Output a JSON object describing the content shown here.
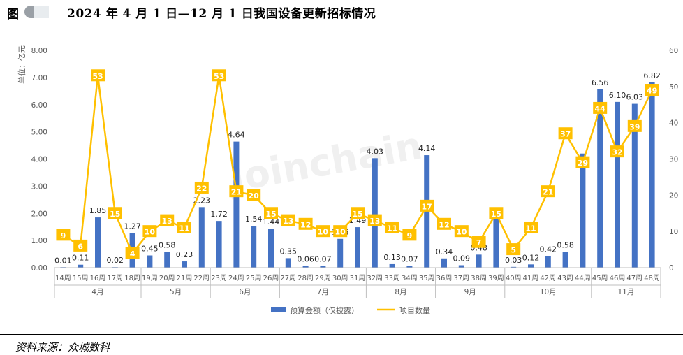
{
  "header": {
    "figure_label": "图",
    "title": "2024 年 4 月 1 日—12 月 1 日我国设备更新招标情况"
  },
  "footer": {
    "source": "资料来源：众城数科"
  },
  "colors": {
    "bar": "#4472C4",
    "line": "#FFC000",
    "label_box": "#FFC000",
    "grid": "#d9d9d9"
  },
  "chart_data": {
    "type": "bar",
    "title": "",
    "y_unit_label": "单位：亿元",
    "watermark": "Joinchain",
    "categories": [
      "14周",
      "15周",
      "16周",
      "17周",
      "18周",
      "19周",
      "20周",
      "21周",
      "22周",
      "23周",
      "24周",
      "25周",
      "26周",
      "27周",
      "28周",
      "29周",
      "30周",
      "31周",
      "32周",
      "33周",
      "34周",
      "35周",
      "36周",
      "37周",
      "38周",
      "39周",
      "40周",
      "41周",
      "42周",
      "43周",
      "44周",
      "45周",
      "46周",
      "47周",
      "48周"
    ],
    "months": [
      {
        "label": "4月",
        "span": 5
      },
      {
        "label": "5月",
        "span": 4
      },
      {
        "label": "6月",
        "span": 4
      },
      {
        "label": "7月",
        "span": 5
      },
      {
        "label": "8月",
        "span": 4
      },
      {
        "label": "9月",
        "span": 4
      },
      {
        "label": "10月",
        "span": 5
      },
      {
        "label": "11月",
        "span": 4
      }
    ],
    "series": [
      {
        "name": "预算金额（仅披露）",
        "type": "bar",
        "axis": "left",
        "values": [
          0.01,
          0.11,
          1.85,
          0.02,
          1.27,
          0.45,
          0.58,
          0.23,
          2.23,
          1.72,
          4.64,
          1.54,
          1.44,
          0.35,
          0.06,
          0.07,
          1.06,
          1.49,
          4.03,
          0.13,
          0.07,
          4.14,
          0.34,
          0.09,
          0.48,
          2.1,
          0.03,
          0.12,
          0.42,
          0.58,
          4.2,
          6.56,
          6.1,
          6.03,
          6.82
        ],
        "labels": [
          "0.01",
          "0.11",
          "1.85",
          "0.02",
          "1.27",
          "0.45",
          "0.58",
          "0.23",
          "2.23",
          "1.72",
          "4.64",
          "1.54",
          "1.44",
          "0.35",
          "0.06",
          "0.07",
          "1.06",
          "1.49",
          "4.03",
          "0.13",
          "0.07",
          "4.14",
          "0.34",
          "0.09",
          "0.48",
          "",
          "0.03",
          "0.12",
          "0.42",
          "0.58",
          "",
          "6.56",
          "6.10",
          "6.03",
          "6.82"
        ]
      },
      {
        "name": "项目数量",
        "type": "line",
        "axis": "right",
        "values": [
          9,
          6,
          53,
          15,
          4,
          10,
          13,
          11,
          22,
          53,
          21,
          20,
          15,
          13,
          12,
          10,
          10,
          15,
          13,
          11,
          9,
          17,
          12,
          10,
          7,
          15,
          5,
          11,
          21,
          37,
          29,
          44,
          32,
          39,
          49
        ]
      }
    ],
    "y_left": {
      "min": 0,
      "max": 8,
      "step": 1,
      "ticks": [
        "0.00",
        "1.00",
        "2.00",
        "3.00",
        "4.00",
        "5.00",
        "6.00",
        "7.00",
        "8.00"
      ]
    },
    "y_right": {
      "min": 0,
      "max": 60,
      "step": 10,
      "ticks": [
        "0",
        "10",
        "20",
        "30",
        "40",
        "50",
        "60"
      ]
    },
    "grid": false,
    "legend_position": "bottom"
  }
}
